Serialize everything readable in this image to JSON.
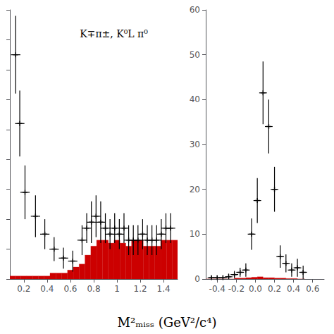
{
  "chart_data": [
    {
      "type": "histogram",
      "xlabel": "M²ₘᵢₛₛ (GeV²/c⁴)",
      "annotation": "K∓π±, K⁰L π⁰",
      "xlim": [
        0.08,
        1.52
      ],
      "ylim": [
        0,
        90
      ],
      "xticks": [
        0.2,
        0.4,
        0.6,
        0.8,
        1.0,
        1.2,
        1.4
      ],
      "yticks": [
        0,
        10,
        20,
        30,
        40,
        50,
        60,
        70,
        80,
        90
      ],
      "tick_labels": "x",
      "grid": false,
      "series": [
        {
          "type": "histogram",
          "bins": [
            0.08,
            0.125,
            0.175,
            0.225,
            0.275,
            0.325,
            0.375,
            0.425,
            0.475,
            0.525,
            0.575,
            0.625,
            0.675,
            0.725,
            0.775,
            0.825,
            0.875,
            0.925,
            0.975,
            1.025,
            1.075,
            1.125,
            1.175,
            1.225,
            1.275,
            1.325,
            1.375,
            1.425,
            1.475,
            1.52
          ],
          "values": [
            1,
            1,
            1,
            1,
            1,
            1,
            1,
            2,
            2,
            2,
            3,
            4,
            5,
            8,
            11,
            13,
            13,
            12,
            13,
            12,
            11,
            13,
            13,
            11,
            11,
            11,
            13,
            13,
            13
          ],
          "color": "#cc0000"
        },
        {
          "type": "scatter",
          "x": [
            0.13,
            0.165,
            0.21,
            0.3,
            0.38,
            0.46,
            0.54,
            0.62,
            0.7,
            0.74,
            0.78,
            0.82,
            0.86,
            0.9,
            0.94,
            0.98,
            1.02,
            1.06,
            1.1,
            1.14,
            1.18,
            1.22,
            1.26,
            1.3,
            1.34,
            1.38,
            1.42,
            1.46
          ],
          "values": [
            75,
            52,
            29,
            21,
            15,
            10,
            7,
            6,
            13,
            17,
            19,
            21,
            19,
            17,
            15,
            17,
            15,
            17,
            13,
            13,
            13,
            15,
            13,
            13,
            13,
            15,
            17,
            17
          ],
          "yerr": [
            13,
            11,
            9,
            7,
            5,
            4,
            3.5,
            3.5,
            5,
            5,
            7,
            7,
            7,
            5,
            5,
            5,
            5,
            5,
            5,
            5,
            5,
            5,
            5,
            5,
            5,
            5,
            5,
            5
          ],
          "xerr": 0.04,
          "marker": "+",
          "color": "black"
        }
      ]
    },
    {
      "type": "histogram",
      "xlim": [
        -0.52,
        0.72
      ],
      "ylim": [
        0,
        60
      ],
      "xticks": [
        -0.4,
        -0.2,
        {
          "value": 0.0,
          "label": "0.0"
        },
        0.2,
        0.4,
        0.6
      ],
      "yticks": [
        0,
        10,
        20,
        30,
        40,
        50,
        60
      ],
      "grid": false,
      "series": [
        {
          "type": "histogram",
          "bins": [
            -0.52,
            -0.46,
            -0.4,
            -0.34,
            -0.28,
            -0.22,
            -0.16,
            -0.1,
            -0.04,
            0.02,
            0.08,
            0.14,
            0.2,
            0.26,
            0.32,
            0.38,
            0.44,
            0.5,
            0.52
          ],
          "values": [
            0,
            0,
            0,
            0,
            0,
            0.2,
            0.2,
            0.3,
            0.4,
            0.5,
            0.3,
            0.3,
            0.2,
            0.2,
            0.1,
            0.1,
            0,
            0
          ],
          "color": "#cc0000"
        },
        {
          "type": "scatter",
          "x": [
            -0.46,
            -0.4,
            -0.34,
            -0.28,
            -0.22,
            -0.16,
            -0.1,
            -0.04,
            0.02,
            0.08,
            0.14,
            0.2,
            0.26,
            0.32,
            0.38,
            0.44,
            0.5
          ],
          "values": [
            0.3,
            0.3,
            0.3,
            0.5,
            1.0,
            1.5,
            2.0,
            10.0,
            17.5,
            41.5,
            34.0,
            20.0,
            5.0,
            3.5,
            2.0,
            2.5,
            1.5
          ],
          "yerr": [
            0.5,
            0.5,
            0.5,
            0.7,
            0.8,
            1.0,
            1.5,
            3.5,
            5.0,
            7.0,
            6.0,
            5.0,
            2.5,
            2.0,
            1.5,
            2.0,
            1.5
          ],
          "xerr": 0.04,
          "marker": "+",
          "color": "black"
        }
      ]
    }
  ]
}
